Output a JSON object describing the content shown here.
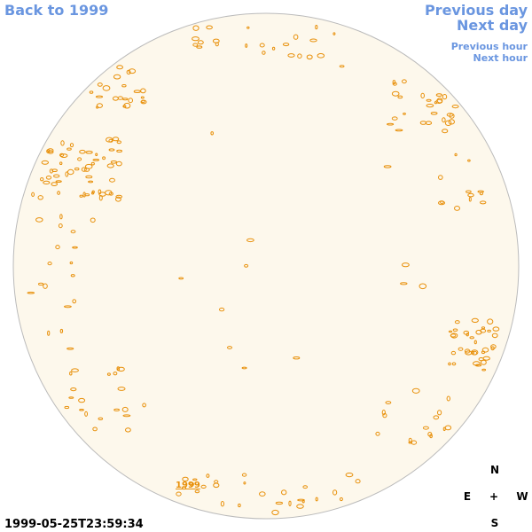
{
  "navigation": {
    "back": "Back to 1999",
    "previous_day": "Previous day",
    "next_day": "Next day",
    "previous_hour": "Previous hour",
    "next_hour": "Next hour"
  },
  "year_link": "1999",
  "timestamp": "1999-05-25T23:59:34",
  "compass": {
    "north": "N",
    "east": "E",
    "center": "+",
    "west": "W",
    "south": "S"
  }
}
